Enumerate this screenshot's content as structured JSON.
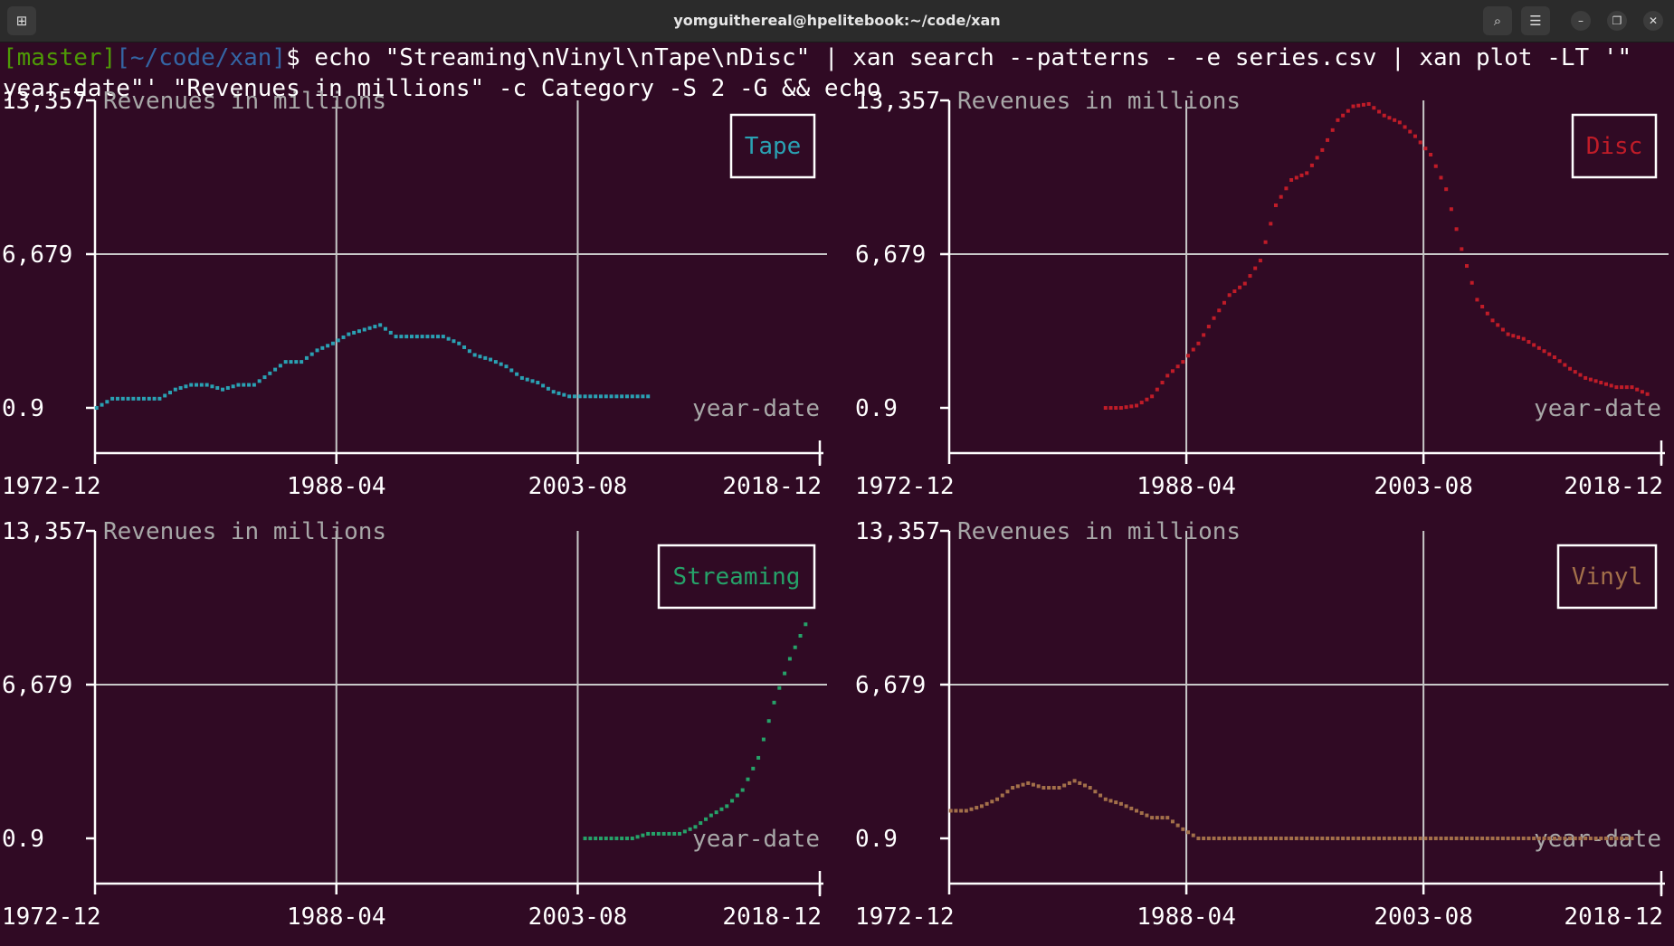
{
  "window": {
    "title": "yomguithereal@hpelitebook:~/code/xan"
  },
  "terminal": {
    "prompt_branch": "[master]",
    "prompt_path": "[~/code/xan]",
    "prompt_symbol": "$",
    "command_line1": " echo \"Streaming\\nVinyl\\nTape\\nDisc\" | xan search --patterns - -e series.csv | xan plot -LT '\"",
    "command_line2": "year-date\"' \"Revenues in millions\" -c Category -S 2 -G && echo"
  },
  "icons": {
    "new_tab": "new-tab-icon",
    "search": "search-icon",
    "menu": "hamburger-menu-icon",
    "minimize": "minimize-icon",
    "maximize": "maximize-icon",
    "close": "close-icon",
    "glyphs": {
      "new_tab": "⊞",
      "search": "⌕",
      "menu": "☰",
      "minimize": "–",
      "maximize": "❐",
      "close": "✕"
    }
  },
  "chart_data": [
    {
      "type": "line",
      "legend": "Tape",
      "color": "#2aa1b3",
      "xlabel": "year-date",
      "ylabel": "Revenues in millions",
      "x_ticks": [
        "1972-12",
        "1988-04",
        "2003-08",
        "2018-12"
      ],
      "y_ticks": [
        "13,357",
        "6,679",
        "0.9"
      ],
      "xlim": [
        1972.9,
        2018.9
      ],
      "ylim": [
        0.9,
        13357
      ],
      "grid": true,
      "legend_position": "top-right",
      "x": [
        1973,
        1974,
        1975,
        1976,
        1977,
        1978,
        1979,
        1980,
        1981,
        1982,
        1983,
        1984,
        1985,
        1986,
        1987,
        1988,
        1989,
        1990,
        1991,
        1992,
        1993,
        1994,
        1995,
        1996,
        1997,
        1998,
        1999,
        2000,
        2001,
        2002,
        2003,
        2004,
        2005,
        2006,
        2007,
        2008
      ],
      "series": [
        {
          "name": "Tape",
          "values": [
            0,
            400,
            400,
            400,
            400,
            800,
            1000,
            1000,
            800,
            1000,
            1000,
            1500,
            2000,
            2000,
            2500,
            2800,
            3200,
            3400,
            3600,
            3100,
            3100,
            3100,
            3100,
            2800,
            2300,
            2100,
            1800,
            1300,
            1100,
            700,
            500,
            500,
            500,
            500,
            500,
            500
          ]
        }
      ]
    },
    {
      "type": "line",
      "legend": "Disc",
      "color": "#c01c28",
      "xlabel": "year-date",
      "ylabel": "Revenues in millions",
      "x_ticks": [
        "1972-12",
        "1988-04",
        "2003-08",
        "2018-12"
      ],
      "y_ticks": [
        "13,357",
        "6,679",
        "0.9"
      ],
      "xlim": [
        1972.9,
        2018.9
      ],
      "ylim": [
        0.9,
        13357
      ],
      "grid": true,
      "legend_position": "top-right",
      "x": [
        1983,
        1984,
        1985,
        1986,
        1987,
        1988,
        1989,
        1990,
        1991,
        1992,
        1993,
        1994,
        1995,
        1996,
        1997,
        1998,
        1999,
        2000,
        2001,
        2002,
        2003,
        2004,
        2005,
        2006,
        2007,
        2008,
        2009,
        2010,
        2011,
        2012,
        2013,
        2014,
        2015,
        2016,
        2017,
        2018
      ],
      "series": [
        {
          "name": "Disc",
          "values": [
            0,
            0,
            100,
            500,
            1400,
            2000,
            2800,
            3900,
            4900,
            5400,
            6400,
            8800,
            9900,
            10200,
            11200,
            12500,
            13100,
            13200,
            12700,
            12400,
            11800,
            11000,
            9500,
            6900,
            4700,
            3800,
            3200,
            3000,
            2600,
            2200,
            1700,
            1300,
            1100,
            900,
            900,
            600
          ]
        }
      ]
    },
    {
      "type": "line",
      "legend": "Streaming",
      "color": "#26a269",
      "xlabel": "year-date",
      "ylabel": "Revenues in millions",
      "x_ticks": [
        "1972-12",
        "1988-04",
        "2003-08",
        "2018-12"
      ],
      "y_ticks": [
        "13,357",
        "6,679",
        "0.9"
      ],
      "xlim": [
        1972.9,
        2018.9
      ],
      "ylim": [
        0.9,
        13357
      ],
      "grid": true,
      "legend_position": "top-right",
      "x": [
        2004,
        2005,
        2006,
        2007,
        2008,
        2009,
        2010,
        2011,
        2012,
        2013,
        2014,
        2015,
        2016,
        2017,
        2018
      ],
      "series": [
        {
          "name": "Streaming",
          "values": [
            0,
            0,
            0,
            0,
            200,
            200,
            200,
            500,
            1000,
            1400,
            2100,
            3500,
            5900,
            7800,
            9300
          ]
        }
      ]
    },
    {
      "type": "line",
      "legend": "Vinyl",
      "color": "#a3704a",
      "xlabel": "year-date",
      "ylabel": "Revenues in millions",
      "x_ticks": [
        "1972-12",
        "1988-04",
        "2003-08",
        "2018-12"
      ],
      "y_ticks": [
        "13,357",
        "6,679",
        "0.9"
      ],
      "xlim": [
        1972.9,
        2018.9
      ],
      "ylim": [
        0.9,
        13357
      ],
      "grid": true,
      "legend_position": "top-right",
      "x": [
        1973,
        1974,
        1975,
        1976,
        1977,
        1978,
        1979,
        1980,
        1981,
        1982,
        1983,
        1984,
        1985,
        1986,
        1987,
        1988,
        1989,
        1990,
        1991,
        1992,
        1993,
        1994,
        1995,
        1996,
        1997,
        1998,
        1999,
        2000,
        2001,
        2002,
        2003,
        2004,
        2005,
        2006,
        2007,
        2008,
        2009,
        2010,
        2011,
        2012,
        2013,
        2014,
        2015,
        2016,
        2017
      ],
      "series": [
        {
          "name": "Vinyl",
          "values": [
            1200,
            1200,
            1400,
            1700,
            2200,
            2400,
            2200,
            2200,
            2500,
            2200,
            1700,
            1500,
            1200,
            900,
            900,
            400,
            0,
            0,
            0,
            0,
            0,
            0,
            0,
            0,
            0,
            0,
            0,
            0,
            0,
            0,
            0,
            0,
            0,
            0,
            0,
            0,
            0,
            0,
            0,
            0,
            0,
            0,
            0,
            0,
            0
          ]
        }
      ]
    }
  ]
}
